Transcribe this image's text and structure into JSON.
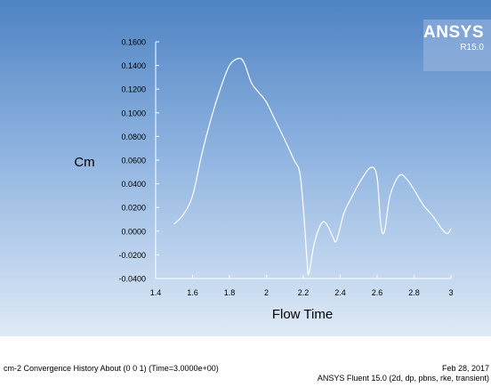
{
  "logo": {
    "name": "ANSYS",
    "release": "R15.0"
  },
  "footer": {
    "title": "cm-2 Convergence History About (0 0 1)  (Time=3.0000e+00)",
    "date": "Feb 28, 2017",
    "solver": "ANSYS Fluent 15.0 (2d, dp, pbns, rke, transient)"
  },
  "colors": {
    "background_top": "#4f83c3",
    "background_bottom": "#dfeaf7",
    "curve": "#ffffff",
    "text": "#000000"
  },
  "chart_data": {
    "type": "line",
    "xlabel": "Flow Time",
    "ylabel": "Cm",
    "xlim": [
      1.4,
      3.0
    ],
    "ylim": [
      -0.04,
      0.16
    ],
    "xticks": [
      "1.4",
      "1.6",
      "1.8",
      "2",
      "2.2",
      "2.4",
      "2.6",
      "2.8",
      "3"
    ],
    "yticks": [
      "-0.0400",
      "-0.0200",
      "0.0000",
      "0.0200",
      "0.0400",
      "0.0600",
      "0.0800",
      "0.1000",
      "0.1200",
      "0.1400",
      "0.1600"
    ],
    "grid": false,
    "series": [
      {
        "x": [
          1.5,
          1.55,
          1.6,
          1.65,
          1.7,
          1.75,
          1.8,
          1.85,
          1.88,
          1.92,
          1.96,
          2.0,
          2.05,
          2.1,
          2.15,
          2.18,
          2.2,
          2.22,
          2.23,
          2.26,
          2.3,
          2.33,
          2.36,
          2.38,
          2.42,
          2.46,
          2.52,
          2.57,
          2.6,
          2.62,
          2.64,
          2.67,
          2.72,
          2.76,
          2.8,
          2.85,
          2.9,
          2.95,
          2.98,
          3.0
        ],
        "y": [
          0.006,
          0.014,
          0.03,
          0.065,
          0.095,
          0.12,
          0.14,
          0.146,
          0.142,
          0.125,
          0.117,
          0.109,
          0.093,
          0.077,
          0.06,
          0.05,
          0.02,
          -0.025,
          -0.036,
          -0.01,
          0.007,
          0.005,
          -0.005,
          -0.008,
          0.015,
          0.028,
          0.045,
          0.054,
          0.045,
          0.005,
          0.0,
          0.03,
          0.047,
          0.044,
          0.035,
          0.022,
          0.013,
          0.002,
          -0.002,
          0.002
        ]
      }
    ]
  }
}
